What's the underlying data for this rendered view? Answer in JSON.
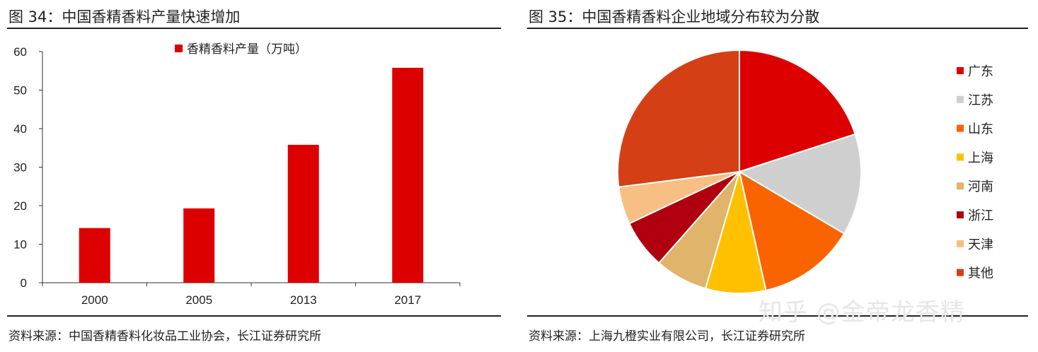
{
  "chart_data": [
    {
      "type": "bar",
      "title": "图 34：中国香精香料产量快速增加",
      "categories": [
        "2000",
        "2005",
        "2013",
        "2017"
      ],
      "series": [
        {
          "name": "香精香料产量（万吨）",
          "values": [
            14.2,
            19.3,
            35.8,
            55.8
          ],
          "color": "#dd0000"
        }
      ],
      "ylim": [
        0,
        60
      ],
      "yticks": [
        "0",
        "10",
        "20",
        "30",
        "40",
        "50",
        "60"
      ],
      "xlabel": "",
      "ylabel": "",
      "grid": false,
      "legend": "top-center",
      "source": "资料来源：中国香精香料化妆品工业协会，长江证券研究所"
    },
    {
      "type": "pie",
      "title": "图 35：中国香精香料企业地域分布较为分散",
      "labels": [
        "广东",
        "江苏",
        "山东",
        "上海",
        "河南",
        "浙江",
        "天津",
        "其他"
      ],
      "values": [
        20,
        13.5,
        13,
        8,
        7,
        6.5,
        5,
        27
      ],
      "colors": [
        "#dd0000",
        "#cfcfcf",
        "#fa6400",
        "#ffc000",
        "#e0b46a",
        "#b0000f",
        "#f7bf83",
        "#d43f15"
      ],
      "legend": "right",
      "source": "资料来源：上海九橙实业有限公司，长江证券研究所"
    }
  ],
  "watermark": "知乎 @金帝龙香精"
}
